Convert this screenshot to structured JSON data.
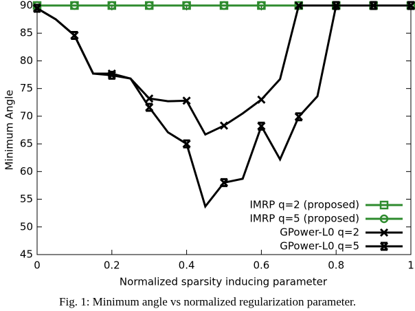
{
  "chart_data": {
    "type": "line",
    "y_label": "Minimum Angle",
    "x_label": "Normalized sparsity inducing parameter",
    "caption": "Fig. 1: Minimum angle vs normalized regularization parameter.",
    "x": [
      0,
      0.05,
      0.1,
      0.15,
      0.2,
      0.25,
      0.3,
      0.35,
      0.4,
      0.45,
      0.5,
      0.55,
      0.6,
      0.65,
      0.7,
      0.75,
      0.8,
      0.85,
      0.9,
      0.95,
      1
    ],
    "series": [
      {
        "name": "IMRP q=2 (proposed)",
        "color": "#2e8b2e",
        "marker": "square",
        "values": [
          90,
          90,
          90,
          90,
          90,
          90,
          90,
          90,
          90,
          90,
          90,
          90,
          90,
          90,
          90,
          90,
          90,
          90,
          90,
          90,
          90
        ]
      },
      {
        "name": "IMRP q=5 (proposed)",
        "color": "#2e8b2e",
        "marker": "circle",
        "values": [
          90,
          90,
          90,
          90,
          90,
          90,
          90,
          90,
          90,
          90,
          90,
          90,
          90,
          90,
          90,
          90,
          90,
          90,
          90,
          90,
          90
        ]
      },
      {
        "name": "GPower-L0 q=2",
        "color": "#000000",
        "marker": "x",
        "values": [
          89.5,
          87.5,
          84.6,
          77.7,
          77.7,
          76.8,
          73.2,
          72.7,
          72.8,
          66.7,
          68.3,
          70.5,
          73,
          76.7,
          90,
          90,
          90,
          90,
          90,
          90,
          90
        ]
      },
      {
        "name": "GPower-L0 q=5",
        "color": "#000000",
        "marker": "star",
        "values": [
          89.5,
          87.5,
          84.6,
          77.7,
          77.4,
          76.8,
          71.6,
          67.1,
          65,
          53.7,
          58,
          58.7,
          68.2,
          62.2,
          69.9,
          73.6,
          90,
          90,
          90,
          90,
          90
        ]
      }
    ],
    "xlim": [
      0,
      1
    ],
    "xticks": [
      0,
      0.2,
      0.4,
      0.6,
      0.8,
      1
    ],
    "ylim": [
      45,
      90
    ],
    "yticks": [
      45,
      50,
      55,
      60,
      65,
      70,
      75,
      80,
      85,
      90
    ],
    "legend": "lower right"
  }
}
